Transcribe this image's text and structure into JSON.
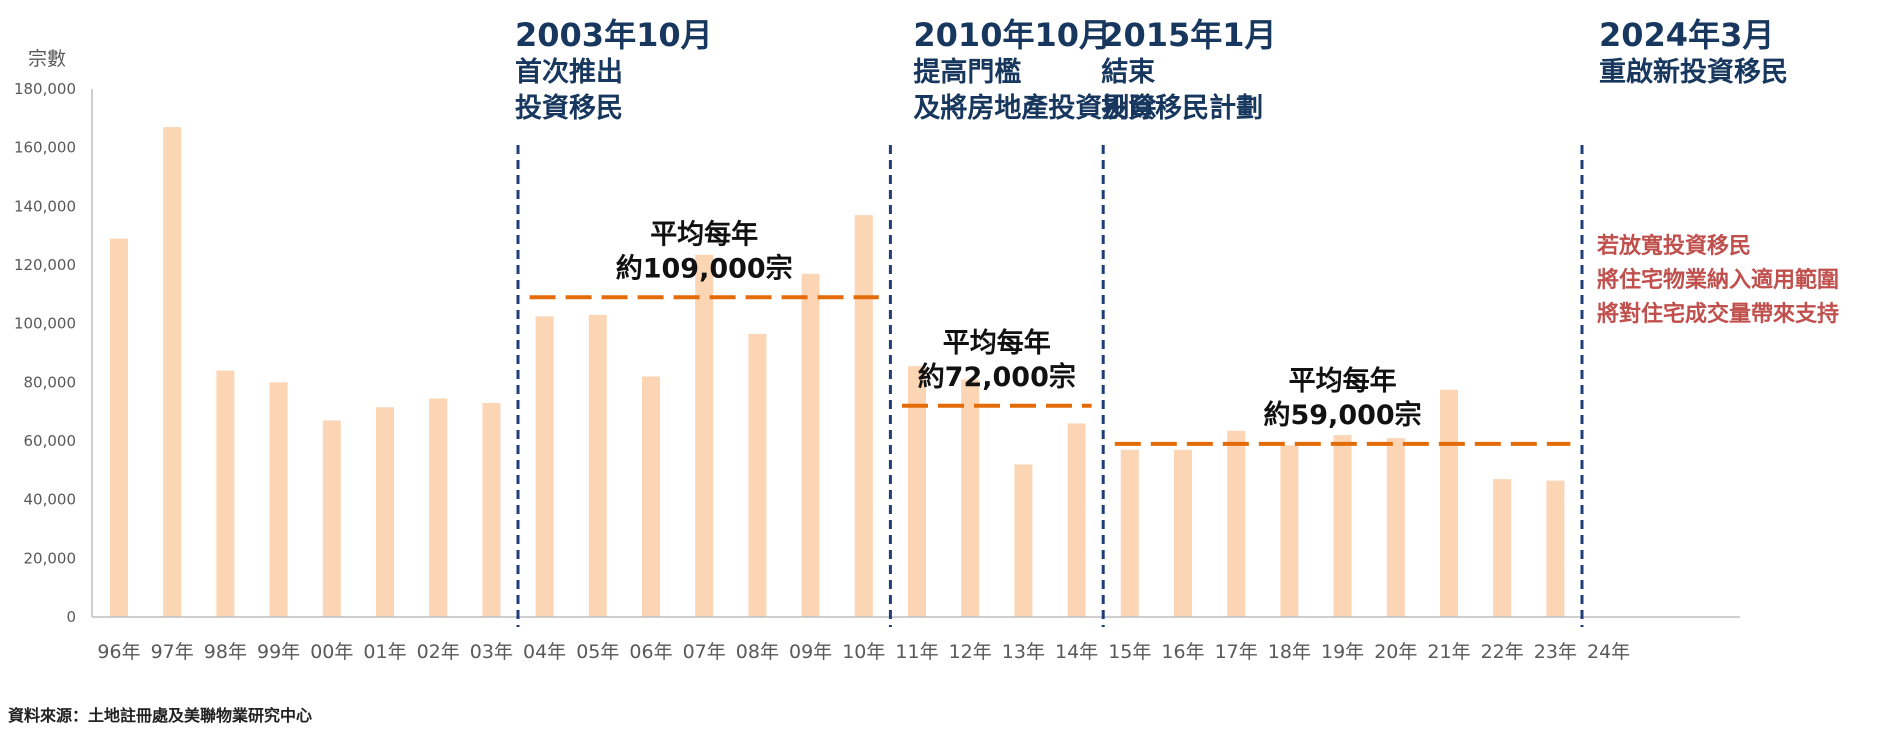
{
  "chart_data": {
    "type": "bar",
    "ylabel": "宗數",
    "ylim": [
      0,
      180000
    ],
    "yticks": [
      0,
      20000,
      40000,
      60000,
      80000,
      100000,
      120000,
      140000,
      160000,
      180000
    ],
    "ytick_labels": [
      "0",
      "20,000",
      "40,000",
      "60,000",
      "80,000",
      "100,000",
      "120,000",
      "140,000",
      "160,000",
      "180,000"
    ],
    "grid": false,
    "categories": [
      "96年",
      "97年",
      "98年",
      "99年",
      "00年",
      "01年",
      "02年",
      "03年",
      "04年",
      "05年",
      "06年",
      "07年",
      "08年",
      "09年",
      "10年",
      "11年",
      "12年",
      "13年",
      "14年",
      "15年",
      "16年",
      "17年",
      "18年",
      "19年",
      "20年",
      "21年",
      "22年",
      "23年",
      "24年"
    ],
    "values": [
      129000,
      167000,
      84000,
      80000,
      67000,
      71500,
      74500,
      73000,
      102500,
      103000,
      82000,
      123500,
      96500,
      117000,
      137000,
      85500,
      81000,
      52000,
      66000,
      57000,
      57000,
      63500,
      58500,
      62000,
      61000,
      77500,
      47000,
      46500,
      null
    ],
    "colors": {
      "bar": "#fcd5b5",
      "event_line": "#1f3d7a",
      "avg_line": "#e36c09",
      "axis": "#bfbfbf"
    },
    "events": [
      {
        "after_index": 7,
        "date": "2003年10月",
        "lines": [
          "首次推出",
          "投資移民"
        ]
      },
      {
        "after_index": 14,
        "date": "2010年10月",
        "lines": [
          "提高門檻",
          "及將房地產投資剔除"
        ]
      },
      {
        "after_index": 18,
        "date": "2015年1月",
        "lines": [
          "結束",
          "投資移民計劃"
        ]
      },
      {
        "after_index": 27,
        "date": "2024年3月",
        "lines": [
          "重啟新投資移民"
        ]
      }
    ],
    "averages": [
      {
        "from_index": 8,
        "to_index": 14,
        "value": 109000,
        "lines": [
          "平均每年",
          "約109,000宗"
        ]
      },
      {
        "from_index": 15,
        "to_index": 18,
        "value": 72000,
        "lines": [
          "平均每年",
          "約72,000宗"
        ]
      },
      {
        "from_index": 19,
        "to_index": 27,
        "value": 59000,
        "lines": [
          "平均每年",
          "約59,000宗"
        ]
      }
    ],
    "note_lines": [
      "若放寬投資移民",
      "將住宅物業納入適用範圍",
      "將對住宅成交量帶來支持"
    ]
  },
  "source": "資料來源：土地註冊處及美聯物業研究中心"
}
